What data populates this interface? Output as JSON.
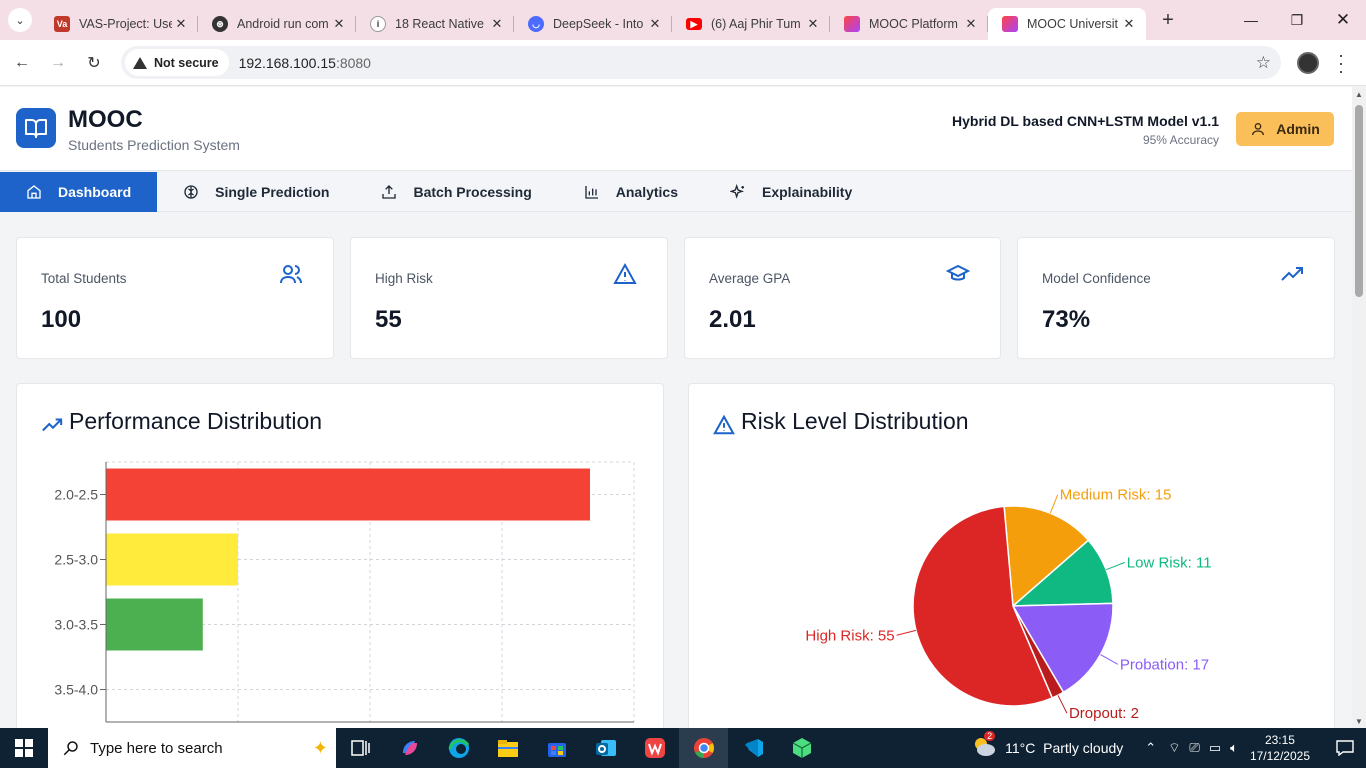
{
  "browser": {
    "tabs": [
      {
        "title": "VAS-Project: Use",
        "icon": "vas-favicon"
      },
      {
        "title": "Android run com",
        "icon": "chatgpt-favicon"
      },
      {
        "title": "18 React Native",
        "icon": "info-favicon"
      },
      {
        "title": "DeepSeek - Into",
        "icon": "deepseek-favicon"
      },
      {
        "title": "(6) Aaj Phir Tum",
        "icon": "youtube-favicon"
      },
      {
        "title": "MOOC Platform",
        "icon": "mooc-favicon"
      },
      {
        "title": "MOOC Universit",
        "icon": "mooc-favicon",
        "active": true
      }
    ],
    "security_label": "Not secure",
    "url_host": "192.168.100.15",
    "url_port": ":8080"
  },
  "header": {
    "brand": "MOOC",
    "subtitle": "Students Prediction System",
    "model_name": "Hybrid DL based CNN+LSTM Model v1.1",
    "model_accuracy": "95% Accuracy",
    "admin_label": "Admin"
  },
  "nav": [
    {
      "label": "Dashboard",
      "icon": "home-icon",
      "active": true
    },
    {
      "label": "Single Prediction",
      "icon": "brain-icon"
    },
    {
      "label": "Batch Processing",
      "icon": "upload-icon"
    },
    {
      "label": "Analytics",
      "icon": "bar-chart-icon"
    },
    {
      "label": "Explainability",
      "icon": "sparkles-icon"
    }
  ],
  "stats": [
    {
      "label": "Total Students",
      "value": "100",
      "icon": "users-icon",
      "color": "#1d63c9"
    },
    {
      "label": "High Risk",
      "value": "55",
      "icon": "warning-icon",
      "color": "#1d63c9"
    },
    {
      "label": "Average GPA",
      "value": "2.01",
      "icon": "graduation-cap-icon",
      "color": "#1d63c9"
    },
    {
      "label": "Model Confidence",
      "value": "73%",
      "icon": "trending-up-icon",
      "color": "#1d63c9"
    }
  ],
  "panels": {
    "performance_title": "Performance Distribution",
    "risk_title": "Risk Level Distribution"
  },
  "chart_data": [
    {
      "type": "bar",
      "orientation": "horizontal",
      "title": "Performance Distribution",
      "categories": [
        "2.0-2.5",
        "2.5-3.0",
        "3.0-3.5",
        "3.5-4.0"
      ],
      "values": [
        55,
        15,
        11,
        0
      ],
      "colors": [
        "#f44336",
        "#ffeb3b",
        "#4caf50",
        "#2196f3"
      ],
      "xlim": [
        0,
        60
      ],
      "grid": true
    },
    {
      "type": "pie",
      "title": "Risk Level Distribution",
      "slices": [
        {
          "label": "High Risk: 55",
          "value": 55,
          "color": "#dc2626"
        },
        {
          "label": "Medium Risk: 15",
          "value": 15,
          "color": "#f59e0b"
        },
        {
          "label": "Low Risk: 11",
          "value": 11,
          "color": "#10b981"
        },
        {
          "label": "Probation: 17",
          "value": 17,
          "color": "#8b5cf6"
        },
        {
          "label": "Dropout: 2",
          "value": 2,
          "color": "#b91c1c"
        }
      ]
    }
  ],
  "taskbar": {
    "search_placeholder": "Type here to search",
    "weather": "11°C  Partly cloudy",
    "time": "23:15",
    "date": "17/12/2025",
    "notification_count": "2"
  }
}
